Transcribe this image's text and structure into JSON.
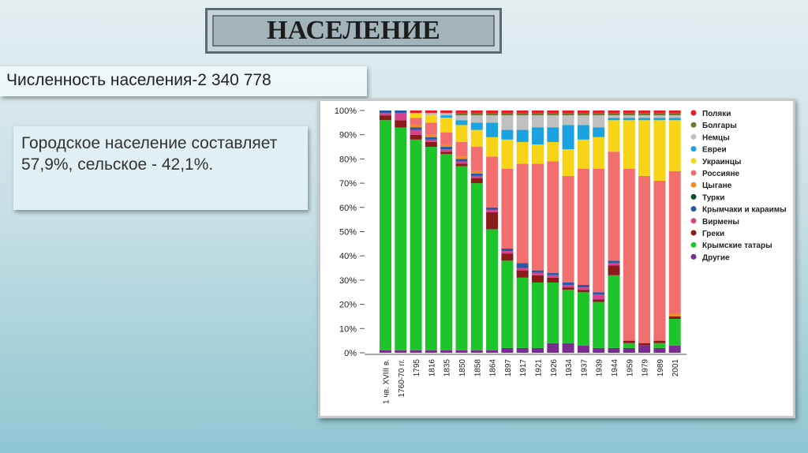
{
  "header": {
    "title": "НАСЕЛЕНИЕ"
  },
  "info": {
    "population": "Численность населения-2 340 778",
    "urban": "Городское население составляет 57,9%, сельское - 42,1%."
  },
  "chart_data": {
    "type": "stacked_bar",
    "categories": [
      "1 чв. XVIII в.",
      "1760-70 гг.",
      "1795",
      "1816",
      "1835",
      "1850",
      "1858",
      "1864",
      "1897",
      "1917",
      "1921",
      "1926",
      "1934",
      "1937",
      "1939",
      "1944",
      "1959",
      "1979",
      "1989",
      "2001"
    ],
    "ylim": [
      0,
      100
    ],
    "yticks": [
      {
        "value": 0,
        "label": "0%"
      },
      {
        "value": 10,
        "label": "10%"
      },
      {
        "value": 20,
        "label": "20%"
      },
      {
        "value": 30,
        "label": "30%"
      },
      {
        "value": 40,
        "label": "40%"
      },
      {
        "value": 50,
        "label": "50%"
      },
      {
        "value": 60,
        "label": "60%"
      },
      {
        "value": 70,
        "label": "70%"
      },
      {
        "value": 80,
        "label": "80%"
      },
      {
        "value": 90,
        "label": "90%"
      },
      {
        "value": 100,
        "label": "100%"
      }
    ],
    "series": [
      {
        "name": "Поляки",
        "color": "#e5202a",
        "values": [
          0,
          0,
          1,
          1,
          1,
          1,
          1,
          1,
          1,
          1,
          1,
          1,
          1,
          1,
          1,
          1,
          1,
          1,
          1,
          1
        ]
      },
      {
        "name": "Болгары",
        "color": "#6b7a2a",
        "values": [
          0,
          0,
          0,
          0,
          0,
          1,
          1,
          1,
          1,
          1,
          1,
          1,
          1,
          1,
          1,
          1,
          1,
          1,
          1,
          1
        ]
      },
      {
        "name": "Немцы",
        "color": "#c0c0c0",
        "values": [
          0,
          0,
          0,
          1,
          1,
          2,
          3,
          3,
          6,
          6,
          5,
          5,
          4,
          4,
          5,
          1,
          1,
          1,
          1,
          1
        ]
      },
      {
        "name": "Евреи",
        "color": "#1aa3e0",
        "values": [
          0,
          0,
          0,
          0,
          1,
          2,
          3,
          6,
          4,
          5,
          7,
          6,
          10,
          6,
          4,
          1,
          1,
          1,
          1,
          1
        ]
      },
      {
        "name": "Украинцы",
        "color": "#f7d417",
        "values": [
          0,
          0,
          2,
          3,
          6,
          7,
          7,
          8,
          12,
          9,
          8,
          8,
          11,
          12,
          13,
          13,
          20,
          23,
          25,
          21
        ]
      },
      {
        "name": "Россияне",
        "color": "#f36f6f",
        "values": [
          0,
          0,
          3,
          5,
          5,
          6,
          10,
          21,
          33,
          41,
          44,
          46,
          44,
          48,
          51,
          45,
          71,
          69,
          66,
          59
        ]
      },
      {
        "name": "Цыгане",
        "color": "#f28c1f",
        "values": [
          0,
          0,
          1,
          1,
          1,
          1,
          1,
          0,
          0,
          0,
          0,
          0,
          0,
          0,
          0,
          0,
          0,
          0,
          0,
          1
        ]
      },
      {
        "name": "Турки",
        "color": "#0b4d22",
        "values": [
          0,
          0,
          0,
          0,
          0,
          0,
          0,
          0,
          0,
          0,
          0,
          0,
          0,
          0,
          0,
          0,
          0,
          0,
          0,
          0
        ]
      },
      {
        "name": "Крымчаки и караимы",
        "color": "#2c57a5",
        "values": [
          1,
          1,
          1,
          1,
          1,
          1,
          1,
          1,
          1,
          2,
          1,
          1,
          1,
          1,
          1,
          1,
          0,
          0,
          0,
          0
        ]
      },
      {
        "name": "Вирмены",
        "color": "#d6428c",
        "values": [
          1,
          3,
          2,
          1,
          1,
          1,
          1,
          1,
          1,
          1,
          1,
          1,
          1,
          1,
          2,
          1,
          0,
          0,
          0,
          0
        ]
      },
      {
        "name": "Греки",
        "color": "#8b1a1a",
        "values": [
          2,
          3,
          2,
          2,
          1,
          1,
          2,
          7,
          3,
          3,
          3,
          2,
          1,
          1,
          1,
          4,
          1,
          1,
          1,
          1
        ]
      },
      {
        "name": "Крымские татары",
        "color": "#1ec52a",
        "values": [
          95,
          92,
          87,
          84,
          81,
          76,
          69,
          50,
          36,
          29,
          27,
          25,
          22,
          22,
          19,
          30,
          2,
          0,
          2,
          11
        ]
      },
      {
        "name": "Другие",
        "color": "#7a2d91",
        "values": [
          1,
          1,
          1,
          1,
          1,
          1,
          1,
          1,
          2,
          2,
          2,
          4,
          4,
          3,
          2,
          2,
          2,
          3,
          2,
          3
        ]
      }
    ]
  }
}
